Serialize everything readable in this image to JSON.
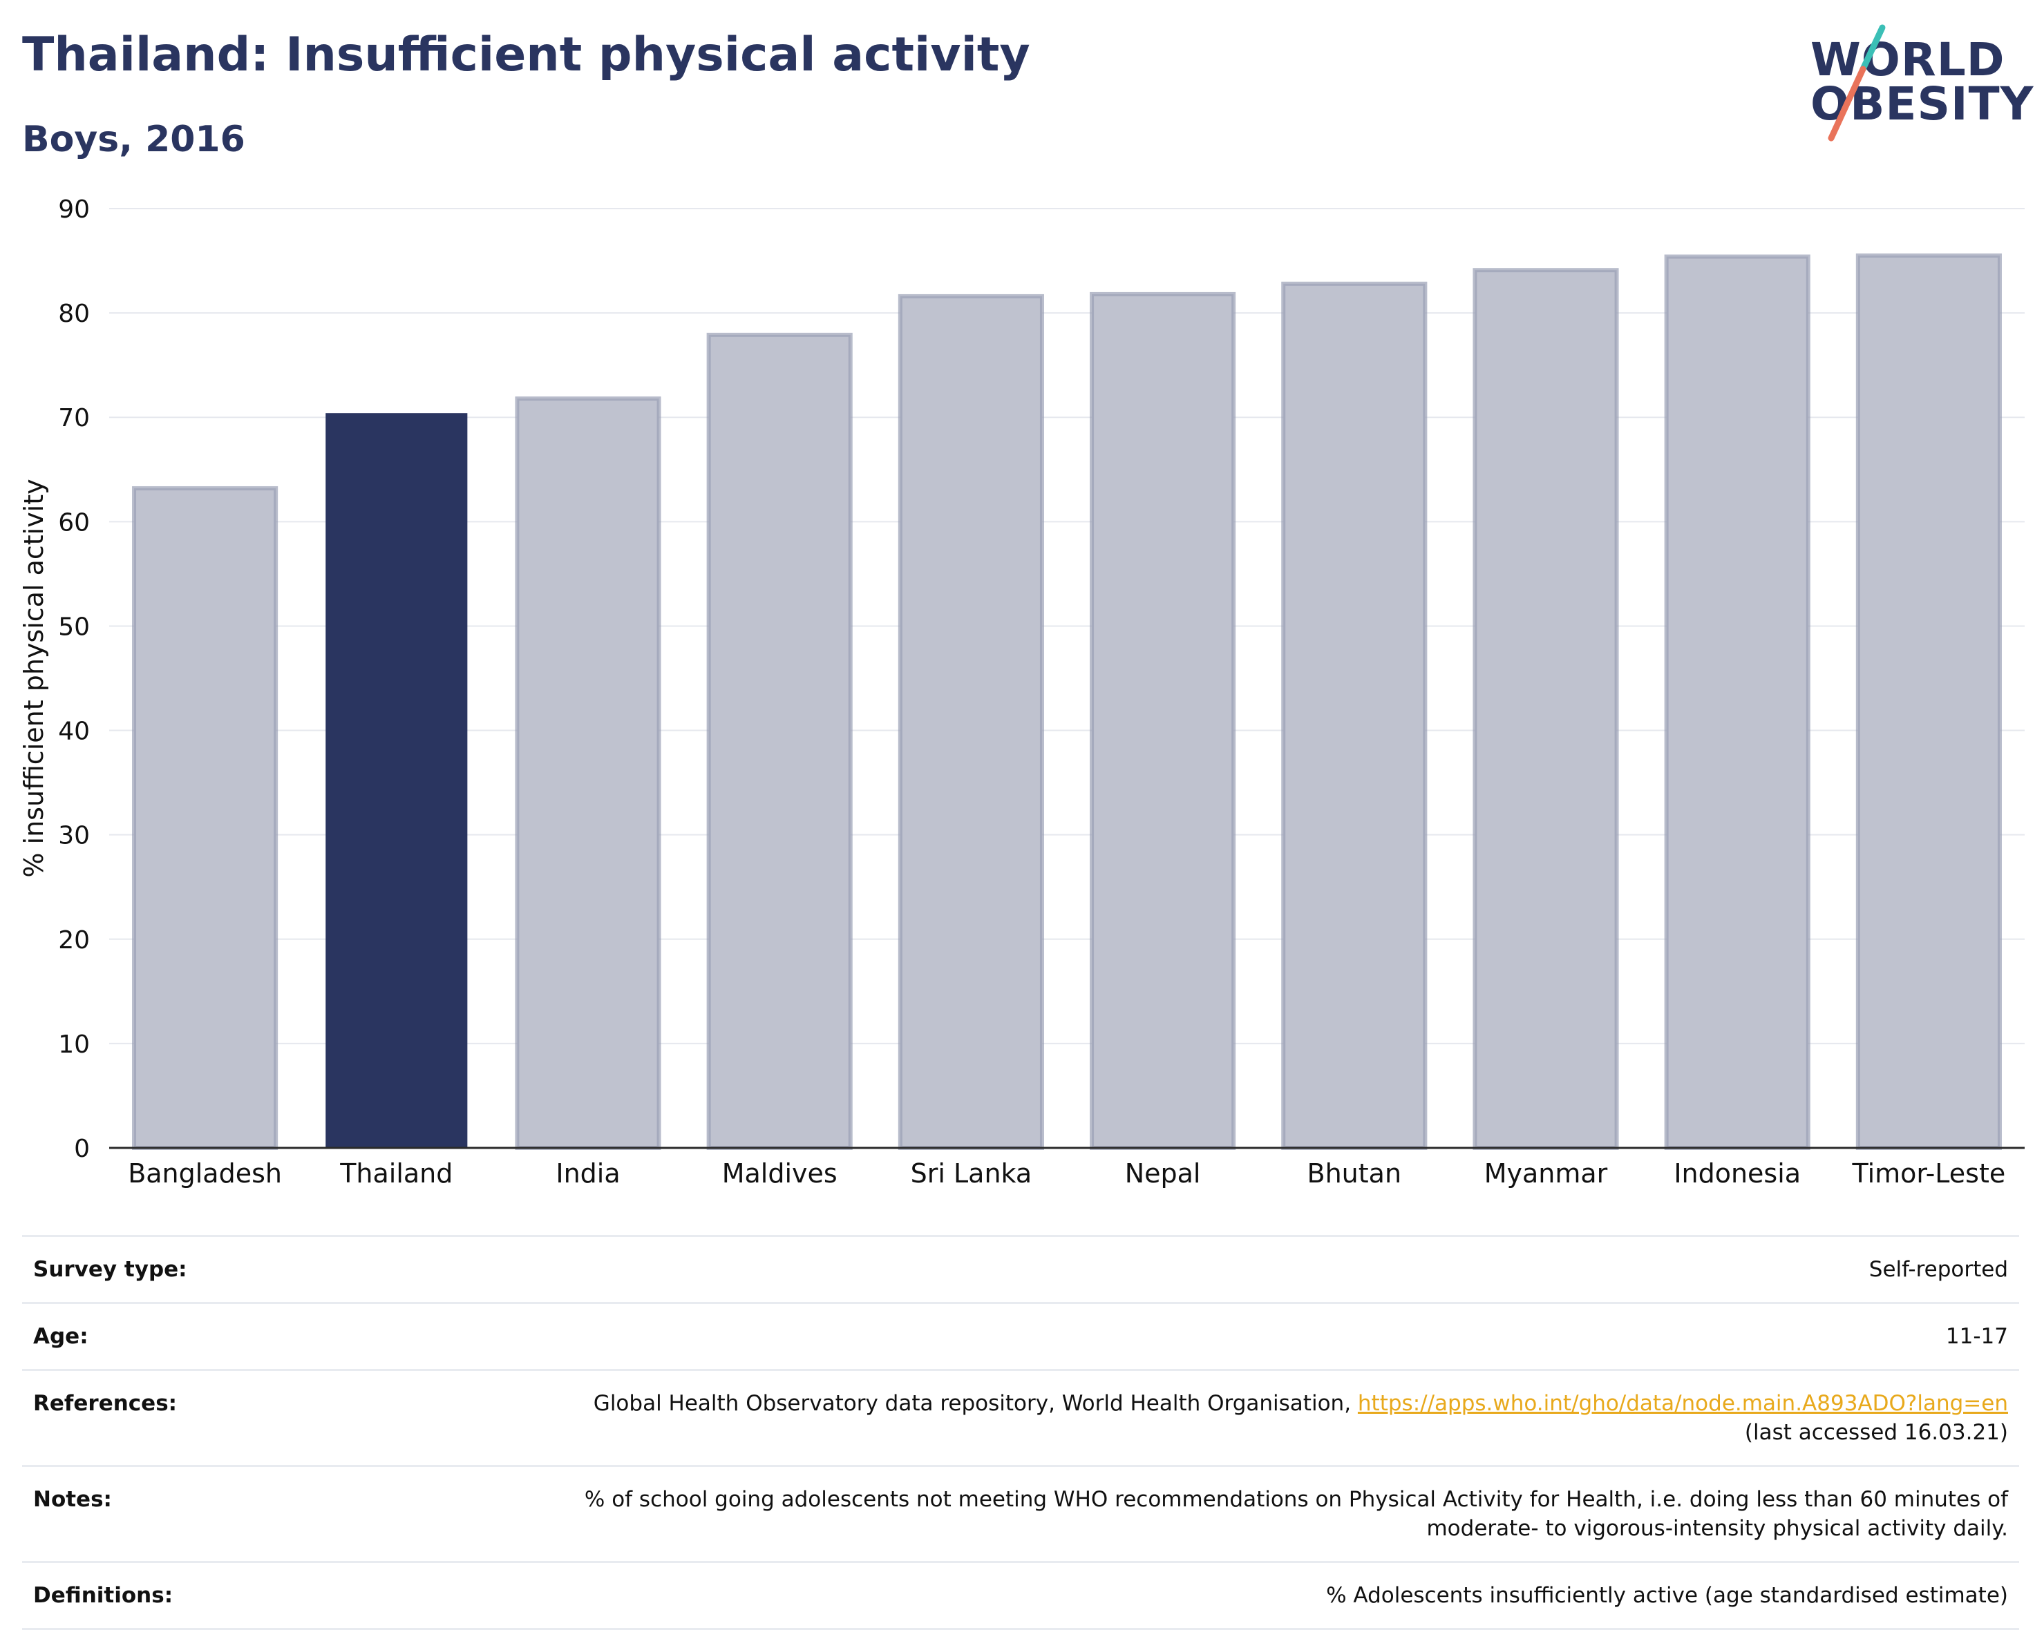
{
  "header": {
    "title": "Thailand: Insufficient physical activity",
    "subtitle": "Boys, 2016"
  },
  "logo": {
    "line1": "WORLD",
    "line2": "OBESITY",
    "slash_colors": [
      "#3bbfb6",
      "#e9735a"
    ]
  },
  "colors": {
    "highlight_bar": "#2a3560",
    "other_bar_fill": "#bfc2cf",
    "other_bar_stroke": "#9a9fb5",
    "grid": "#e6e8ee",
    "axis": "#2a2a2a",
    "link": "#e8a91c"
  },
  "chart_data": {
    "type": "bar",
    "title": "",
    "xlabel": "",
    "ylabel": "% insufficient physical activity",
    "ylim": [
      0,
      90
    ],
    "yticks": [
      0,
      10,
      20,
      30,
      40,
      50,
      60,
      70,
      80,
      90
    ],
    "grid": true,
    "highlight": "Thailand",
    "categories": [
      "Bangladesh",
      "Thailand",
      "India",
      "Maldives",
      "Sri Lanka",
      "Nepal",
      "Bhutan",
      "Myanmar",
      "Indonesia",
      "Timor-Leste"
    ],
    "values": [
      63.2,
      70.4,
      71.8,
      77.9,
      81.6,
      81.8,
      82.8,
      84.1,
      85.4,
      85.5
    ]
  },
  "info": {
    "survey_type_label": "Survey type:",
    "survey_type_value": "Self-reported",
    "age_label": "Age:",
    "age_value": "11-17",
    "references_label": "References:",
    "references_text": "Global Health Observatory data repository, World Health Organisation, ",
    "references_link": "https://apps.who.int/gho/data/node.main.A893ADO?lang=en",
    "references_accessed": "(last accessed 16.03.21)",
    "notes_label": "Notes:",
    "notes_line1": "% of school going adolescents not meeting WHO recommendations on Physical Activity for Health, i.e. doing less than 60 minutes of",
    "notes_line2": "moderate- to vigorous-intensity physical activity daily.",
    "definitions_label": "Definitions:",
    "definitions_value": "% Adolescents insufficiently active (age standardised estimate)"
  }
}
